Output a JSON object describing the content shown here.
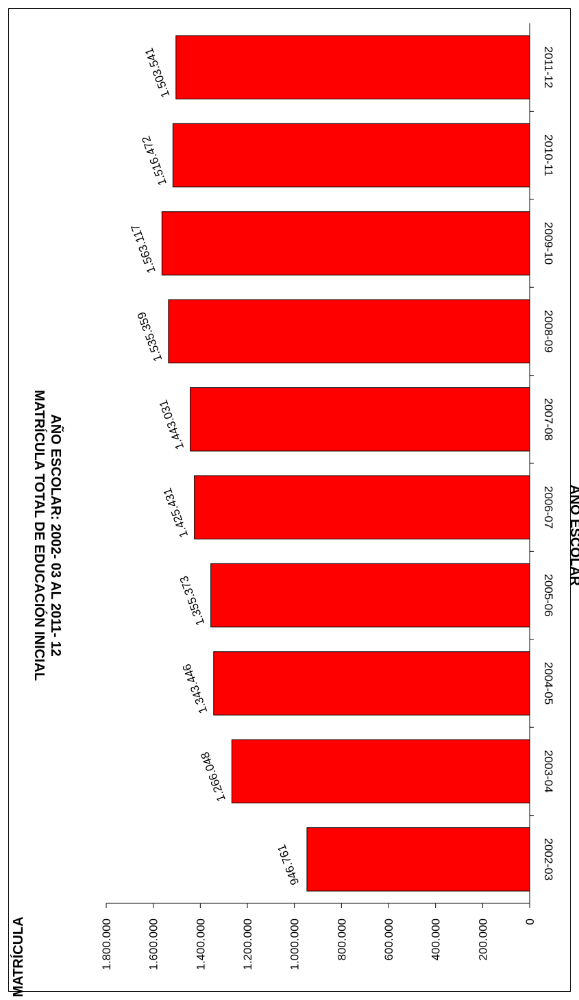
{
  "chart_data": {
    "type": "bar",
    "title": "MATRÍCULA TOTAL  DE EDUCACIÓN INICIAL",
    "subtitle": "AÑO ESCOLAR: 2002- 03 AL  2011- 12",
    "xlabel": "AÑO ESCOLAR",
    "ylabel": "MATRÍCULA",
    "categories": [
      "2002-03",
      "2003-04",
      "2004-05",
      "2005-06",
      "2006-07",
      "2007-08",
      "2008-09",
      "2009-10",
      "2010-11",
      "2011-12"
    ],
    "values": [
      946761,
      1266048,
      1343446,
      1355373,
      1425431,
      1443031,
      1535359,
      1563117,
      1516472,
      1503541
    ],
    "value_labels": [
      "946.761",
      "1.266.048",
      "1.343.446",
      "1.355.373",
      "1.425.431",
      "1.443.031",
      "1.535.359",
      "1.563.117",
      "1.516.472",
      "1.503.541"
    ],
    "ylim": [
      0,
      1800000
    ],
    "yticks": [
      0,
      200000,
      400000,
      600000,
      800000,
      1000000,
      1200000,
      1400000,
      1600000,
      1800000
    ],
    "ytick_labels": [
      "0",
      "200.000",
      "400.000",
      "600.000",
      "800.000",
      "1.000.000",
      "1.200.000",
      "1.400.000",
      "1.600.000",
      "1.800.000"
    ],
    "bar_color": "#ff0000",
    "grid": false,
    "legend": "none",
    "orientation": "rotated 90° clockwise"
  }
}
